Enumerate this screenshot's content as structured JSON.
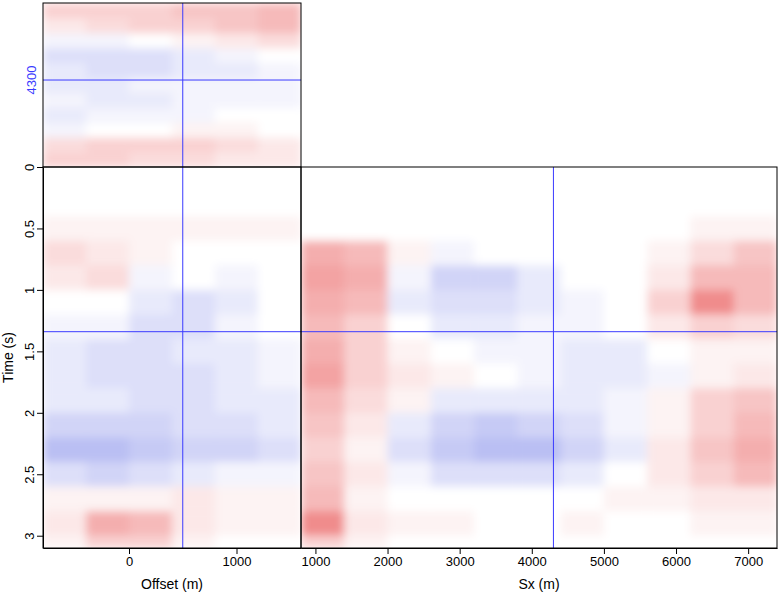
{
  "chart_data": {
    "type": "heatmap",
    "x_label": "Offset (m)",
    "x2_label": "Sx (m)",
    "y_label": "Time (s)",
    "offset_lim": [
      -800,
      1600
    ],
    "offset_ticks": [
      0,
      1000
    ],
    "sx_lim": [
      800,
      7400
    ],
    "sx_ticks": [
      1000,
      2000,
      3000,
      4000,
      5000,
      6000,
      7000
    ],
    "time_lim": [
      0,
      3.1
    ],
    "time_ticks": [
      0,
      0.5,
      1,
      1.5,
      2,
      2.5,
      3
    ],
    "crosshair": {
      "offset": 500,
      "sx": 4300,
      "time": 1.34
    },
    "clim": [
      -1,
      1
    ],
    "time_edges": [
      0,
      0.2,
      0.4,
      0.6,
      0.8,
      1.0,
      1.2,
      1.4,
      1.6,
      1.8,
      2.0,
      2.2,
      2.4,
      2.6,
      2.8,
      3.0,
      3.1
    ],
    "offset_edges": [
      -800,
      -400,
      0,
      400,
      800,
      1200,
      1600
    ],
    "sx_edges": [
      800,
      1400,
      2000,
      2600,
      3200,
      3800,
      4400,
      5000,
      5600,
      6200,
      6800,
      7400
    ],
    "front_cells": [
      [
        0,
        0,
        0,
        0,
        0,
        0
      ],
      [
        0,
        0,
        0,
        0,
        0,
        0
      ],
      [
        0.05,
        0.05,
        0.05,
        0.05,
        0.05,
        0.05
      ],
      [
        0.15,
        0.1,
        0.05,
        0,
        0,
        0
      ],
      [
        0.1,
        0.15,
        -0.05,
        0,
        -0.05,
        0
      ],
      [
        0,
        0,
        -0.1,
        -0.15,
        -0.1,
        0
      ],
      [
        -0.05,
        -0.05,
        -0.15,
        -0.15,
        -0.05,
        0
      ],
      [
        -0.1,
        -0.15,
        -0.15,
        -0.1,
        -0.1,
        -0.05
      ],
      [
        -0.1,
        -0.15,
        -0.15,
        -0.15,
        -0.1,
        -0.05
      ],
      [
        -0.1,
        -0.1,
        -0.15,
        -0.15,
        -0.1,
        -0.1
      ],
      [
        -0.2,
        -0.2,
        -0.2,
        -0.15,
        -0.15,
        -0.1
      ],
      [
        -0.3,
        -0.3,
        -0.25,
        -0.2,
        -0.2,
        -0.15
      ],
      [
        -0.15,
        -0.2,
        -0.15,
        -0.1,
        -0.05,
        -0.05
      ],
      [
        0.05,
        0.05,
        0.05,
        0.1,
        0.05,
        0.05
      ],
      [
        0.1,
        0.35,
        0.3,
        0.1,
        0.05,
        0.05
      ],
      [
        0.05,
        0.2,
        0.2,
        0.05,
        0,
        0
      ]
    ],
    "side_cells": [
      [
        0,
        0,
        0,
        0,
        0,
        0,
        0,
        0,
        0,
        0,
        0
      ],
      [
        0,
        0,
        0,
        0,
        0,
        0,
        0,
        0,
        0,
        0,
        0
      ],
      [
        0,
        0,
        0,
        0,
        0,
        0,
        0,
        0,
        0,
        0.05,
        0.05
      ],
      [
        0.35,
        0.3,
        0.05,
        -0.05,
        0,
        0,
        0,
        0,
        0.05,
        0.15,
        0.25
      ],
      [
        0.4,
        0.35,
        -0.05,
        -0.2,
        -0.2,
        -0.1,
        0,
        0,
        0.1,
        0.3,
        0.3
      ],
      [
        0.35,
        0.3,
        -0.1,
        -0.15,
        -0.15,
        -0.1,
        -0.05,
        0,
        0.2,
        0.5,
        0.3
      ],
      [
        0.3,
        0.2,
        0,
        -0.1,
        -0.1,
        -0.05,
        -0.05,
        0,
        0.1,
        0.2,
        0.15
      ],
      [
        0.35,
        0.2,
        0.05,
        0,
        -0.05,
        -0.05,
        -0.1,
        -0.1,
        0,
        0.05,
        0.05
      ],
      [
        0.4,
        0.2,
        0.1,
        0.05,
        0,
        -0.05,
        -0.1,
        -0.1,
        -0.05,
        0.05,
        0.1
      ],
      [
        0.3,
        0.15,
        0.05,
        -0.1,
        -0.1,
        -0.1,
        -0.1,
        -0.05,
        0.05,
        0.2,
        0.25
      ],
      [
        0.25,
        0.1,
        -0.1,
        -0.2,
        -0.25,
        -0.2,
        -0.15,
        -0.05,
        0.05,
        0.2,
        0.3
      ],
      [
        0.2,
        0.05,
        -0.15,
        -0.25,
        -0.3,
        -0.3,
        -0.2,
        -0.1,
        0.1,
        0.25,
        0.35
      ],
      [
        0.25,
        0.1,
        -0.05,
        -0.15,
        -0.15,
        -0.15,
        -0.1,
        0,
        0.1,
        0.2,
        0.3
      ],
      [
        0.3,
        0.05,
        0,
        0,
        0,
        0,
        0,
        0.05,
        0.05,
        0.1,
        0.1
      ],
      [
        0.5,
        0.1,
        0.05,
        0.05,
        0,
        0,
        0.05,
        0,
        0,
        0.05,
        0.05
      ],
      [
        0.2,
        0.05,
        0,
        0,
        0,
        0,
        0,
        0,
        0,
        0,
        0
      ]
    ],
    "top_cells": [
      [
        0.2,
        0.2,
        0.15,
        0.15,
        0.1,
        0.1
      ],
      [
        0.15,
        0.2,
        0.2,
        0.2,
        0.15,
        0.1
      ],
      [
        -0.05,
        0,
        0,
        0.05,
        0.05,
        0
      ],
      [
        -0.1,
        -0.05,
        -0.05,
        -0.05,
        0,
        0
      ],
      [
        -0.05,
        -0.1,
        -0.1,
        -0.05,
        -0.05,
        -0.05
      ],
      [
        -0.1,
        -0.1,
        -0.05,
        -0.05,
        -0.05,
        -0.05
      ],
      [
        -0.1,
        -0.15,
        -0.15,
        -0.1,
        -0.1,
        -0.05
      ],
      [
        -0.15,
        -0.15,
        -0.15,
        -0.1,
        -0.05,
        0
      ],
      [
        -0.05,
        -0.05,
        0,
        0.05,
        0.1,
        0.15
      ],
      [
        0.1,
        0.15,
        0.2,
        0.2,
        0.25,
        0.3
      ],
      [
        0.2,
        0.2,
        0.2,
        0.25,
        0.25,
        0.3
      ]
    ]
  }
}
